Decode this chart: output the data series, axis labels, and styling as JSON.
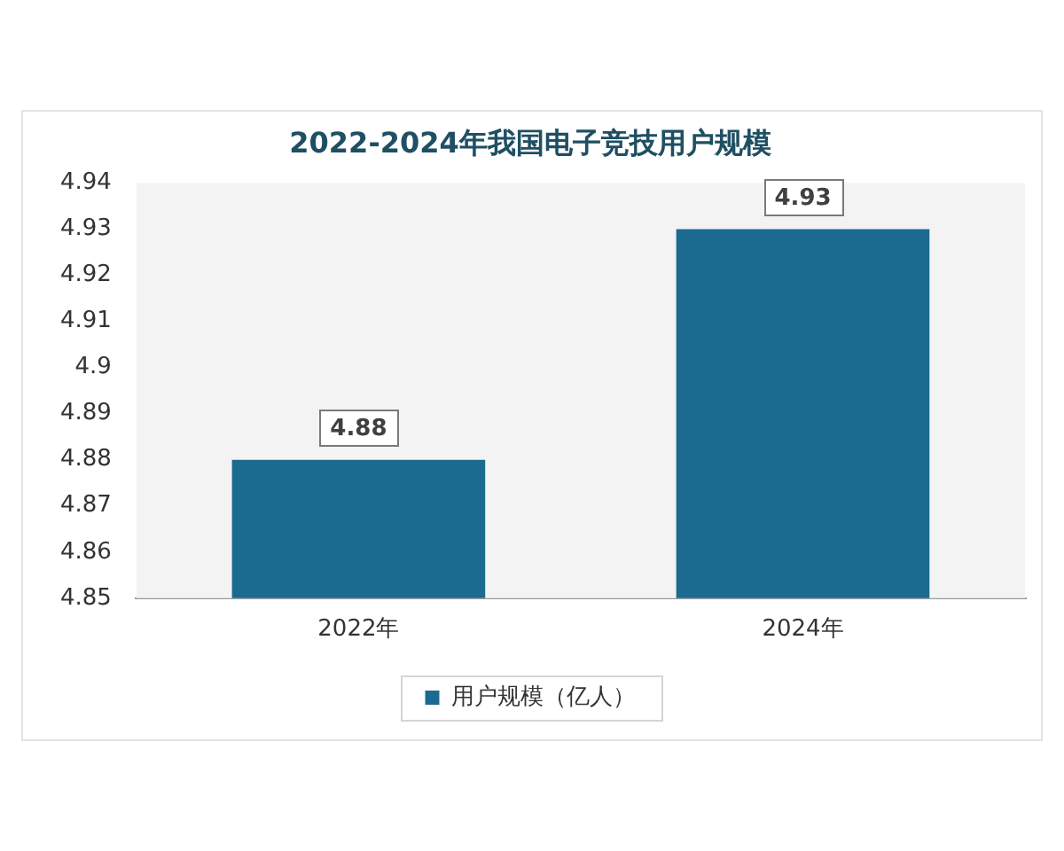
{
  "chart_data": {
    "type": "bar",
    "title": "2022-2024年我国电子竞技用户规模",
    "categories": [
      "2022年",
      "2024年"
    ],
    "series": [
      {
        "name": "用户规模（亿人）",
        "color": "#1b6a8f",
        "values": [
          4.88,
          4.93
        ]
      }
    ],
    "ylim": [
      4.85,
      4.94
    ],
    "yticks": [
      4.85,
      4.86,
      4.87,
      4.88,
      4.89,
      4.9,
      4.91,
      4.92,
      4.93,
      4.94
    ],
    "data_labels": true,
    "legend": "bottom",
    "grid": false
  }
}
